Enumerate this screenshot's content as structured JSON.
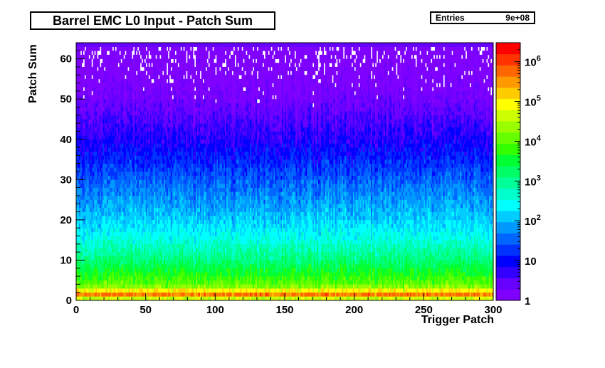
{
  "chart_data": {
    "type": "heatmap",
    "title": "Barrel EMC L0 Input - Patch Sum",
    "xlabel": "Trigger Patch",
    "ylabel": "Patch Sum",
    "xlim": [
      0,
      300
    ],
    "ylim": [
      0,
      64
    ],
    "x_ticks": [
      0,
      50,
      100,
      150,
      200,
      250,
      300
    ],
    "y_ticks": [
      0,
      10,
      20,
      30,
      40,
      50,
      60
    ],
    "z_scale": "log",
    "z_range": [
      1,
      3000000
    ],
    "z_ticks": [
      {
        "value": 1,
        "label": "1"
      },
      {
        "value": 10,
        "label": "10"
      },
      {
        "value": 100,
        "label": "10",
        "exp": "2"
      },
      {
        "value": 1000,
        "label": "10",
        "exp": "3"
      },
      {
        "value": 10000,
        "label": "10",
        "exp": "4"
      },
      {
        "value": 100000,
        "label": "10",
        "exp": "5"
      },
      {
        "value": 1000000,
        "label": "10",
        "exp": "6"
      }
    ],
    "row_profile": [
      {
        "y": 0,
        "z": 3000
      },
      {
        "y": 1,
        "z": 800000
      },
      {
        "y": 2,
        "z": 300000
      },
      {
        "y": 3,
        "z": 30000
      },
      {
        "y": 4,
        "z": 12000
      },
      {
        "y": 6,
        "z": 6000
      },
      {
        "y": 8,
        "z": 3000
      },
      {
        "y": 10,
        "z": 1500
      },
      {
        "y": 13,
        "z": 700
      },
      {
        "y": 16,
        "z": 300
      },
      {
        "y": 20,
        "z": 150
      },
      {
        "y": 25,
        "z": 70
      },
      {
        "y": 30,
        "z": 35
      },
      {
        "y": 35,
        "z": 15
      },
      {
        "y": 40,
        "z": 7
      },
      {
        "y": 45,
        "z": 4
      },
      {
        "y": 50,
        "z": 2
      },
      {
        "y": 55,
        "z": 1.3
      },
      {
        "y": 60,
        "z": 1
      },
      {
        "y": 63,
        "z": 1
      }
    ],
    "stats": {
      "entries_label": "Entries",
      "entries_value": "9e+08"
    },
    "palette": [
      "#7f00ff",
      "#6600ff",
      "#3300ff",
      "#0000ff",
      "#0033ff",
      "#0066ff",
      "#0099ff",
      "#00ccff",
      "#00ffff",
      "#00ffcc",
      "#00ff99",
      "#00ff66",
      "#00ff33",
      "#33ff00",
      "#66ff00",
      "#99ff00",
      "#ccff00",
      "#ffff00",
      "#ffcc00",
      "#ff9900",
      "#ff6600",
      "#ff3300",
      "#ff0000"
    ]
  }
}
